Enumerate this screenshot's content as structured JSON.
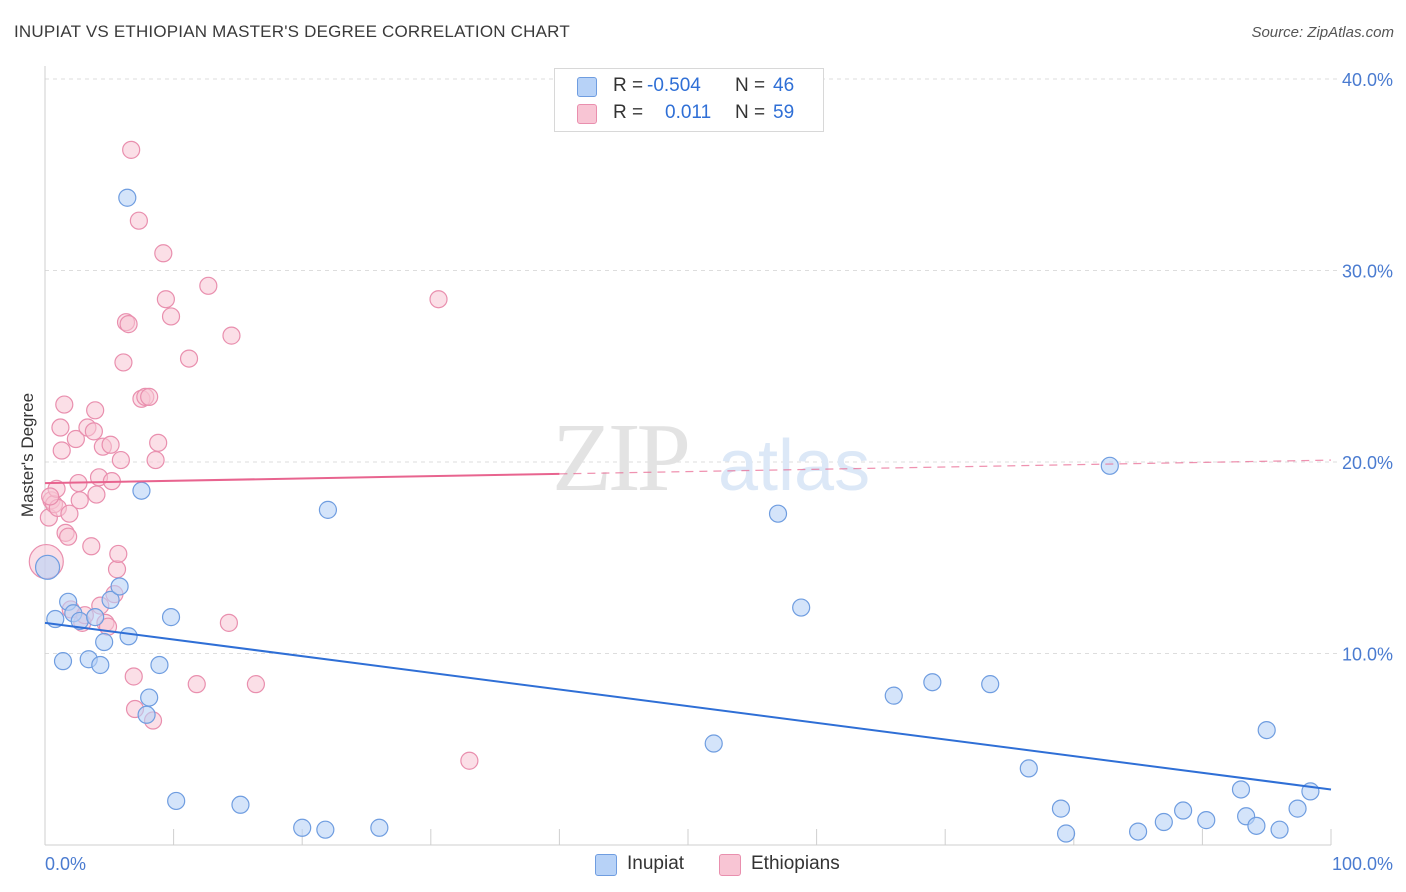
{
  "header": {
    "title": "INUPIAT VS ETHIOPIAN MASTER'S DEGREE CORRELATION CHART",
    "source": "Source: ZipAtlas.com"
  },
  "watermark": {
    "zip": "ZIP",
    "atlas": "atlas"
  },
  "legend_top": {
    "rows": [
      {
        "r_label": "R =",
        "r_value": "-0.504",
        "n_label": "N =",
        "n_value": "46"
      },
      {
        "r_label": "R =",
        "r_value": "0.011",
        "n_label": "N =",
        "n_value": "59"
      }
    ]
  },
  "legend_bottom": {
    "inupiat": "Inupiat",
    "ethiopians": "Ethiopians"
  },
  "colors": {
    "inupiat_fill": "#b7d2f7",
    "inupiat_stroke": "#6f9de0",
    "inupiat_line": "#2f6fd6",
    "ethiopian_fill": "#f8c5d4",
    "ethiopian_stroke": "#e98fae",
    "ethiopian_line": "#e8648f",
    "tick_text": "#4a7bd0",
    "grid": "#dddddd"
  },
  "chart_data": {
    "type": "scatter",
    "title": "INUPIAT VS ETHIOPIAN MASTER'S DEGREE CORRELATION CHART",
    "xlabel": "",
    "ylabel": "Master's Degree",
    "xlim": [
      0,
      100
    ],
    "ylim": [
      0,
      40
    ],
    "x_tick_labels": [
      "0.0%",
      "100.0%"
    ],
    "y_ticks": [
      10,
      20,
      30,
      40
    ],
    "y_tick_labels": [
      "10.0%",
      "20.0%",
      "30.0%",
      "40.0%"
    ],
    "series": [
      {
        "name": "Inupiat",
        "r": -0.504,
        "n": 46,
        "trend": {
          "x": [
            0,
            100
          ],
          "y": [
            11.6,
            2.9
          ],
          "dashed_from": null
        },
        "points": [
          [
            0.2,
            14.5
          ],
          [
            0.8,
            11.8
          ],
          [
            1.4,
            9.6
          ],
          [
            1.8,
            12.7
          ],
          [
            2.2,
            12.1
          ],
          [
            2.7,
            11.7
          ],
          [
            3.4,
            9.7
          ],
          [
            3.9,
            11.9
          ],
          [
            4.3,
            9.4
          ],
          [
            4.6,
            10.6
          ],
          [
            5.1,
            12.8
          ],
          [
            5.8,
            13.5
          ],
          [
            6.5,
            10.9
          ],
          [
            6.4,
            33.8
          ],
          [
            7.5,
            18.5
          ],
          [
            7.9,
            6.8
          ],
          [
            8.1,
            7.7
          ],
          [
            8.9,
            9.4
          ],
          [
            9.8,
            11.9
          ],
          [
            10.2,
            2.3
          ],
          [
            15.2,
            2.1
          ],
          [
            20.0,
            0.9
          ],
          [
            21.8,
            0.8
          ],
          [
            22.0,
            17.5
          ],
          [
            26.0,
            0.9
          ],
          [
            52.0,
            5.3
          ],
          [
            57.0,
            17.3
          ],
          [
            58.8,
            12.4
          ],
          [
            66.0,
            7.8
          ],
          [
            69.0,
            8.5
          ],
          [
            73.5,
            8.4
          ],
          [
            76.5,
            4.0
          ],
          [
            79.0,
            1.9
          ],
          [
            79.4,
            0.6
          ],
          [
            82.8,
            19.8
          ],
          [
            85.0,
            0.7
          ],
          [
            87.0,
            1.2
          ],
          [
            88.5,
            1.8
          ],
          [
            90.3,
            1.3
          ],
          [
            93.0,
            2.9
          ],
          [
            93.4,
            1.5
          ],
          [
            94.2,
            1.0
          ],
          [
            95.0,
            6.0
          ],
          [
            96.0,
            0.8
          ],
          [
            97.4,
            1.9
          ],
          [
            98.4,
            2.8
          ]
        ]
      },
      {
        "name": "Ethiopians",
        "r": 0.011,
        "n": 59,
        "trend": {
          "x": [
            0,
            100
          ],
          "y": [
            18.9,
            20.1
          ],
          "dashed_from": 40
        },
        "points": [
          [
            0.1,
            14.8
          ],
          [
            0.3,
            17.1
          ],
          [
            0.5,
            18.0
          ],
          [
            0.7,
            17.8
          ],
          [
            0.9,
            18.6
          ],
          [
            1.0,
            17.6
          ],
          [
            1.2,
            21.8
          ],
          [
            1.3,
            20.6
          ],
          [
            1.5,
            23.0
          ],
          [
            1.6,
            16.3
          ],
          [
            1.8,
            16.1
          ],
          [
            1.9,
            17.3
          ],
          [
            2.0,
            12.3
          ],
          [
            2.4,
            21.2
          ],
          [
            2.6,
            18.9
          ],
          [
            2.7,
            18.0
          ],
          [
            2.9,
            11.6
          ],
          [
            3.1,
            12.0
          ],
          [
            3.3,
            21.8
          ],
          [
            3.6,
            15.6
          ],
          [
            3.8,
            21.6
          ],
          [
            3.9,
            22.7
          ],
          [
            4.0,
            18.3
          ],
          [
            4.2,
            19.2
          ],
          [
            4.3,
            12.5
          ],
          [
            4.5,
            20.8
          ],
          [
            4.7,
            11.6
          ],
          [
            4.9,
            11.4
          ],
          [
            5.1,
            20.9
          ],
          [
            5.2,
            19.0
          ],
          [
            5.4,
            13.1
          ],
          [
            5.6,
            14.4
          ],
          [
            5.7,
            15.2
          ],
          [
            5.9,
            20.1
          ],
          [
            6.1,
            25.2
          ],
          [
            6.3,
            27.3
          ],
          [
            6.5,
            27.2
          ],
          [
            6.7,
            36.3
          ],
          [
            6.9,
            8.8
          ],
          [
            7.0,
            7.1
          ],
          [
            7.3,
            32.6
          ],
          [
            7.5,
            23.3
          ],
          [
            7.8,
            23.4
          ],
          [
            8.1,
            23.4
          ],
          [
            8.4,
            6.5
          ],
          [
            8.6,
            20.1
          ],
          [
            8.8,
            21.0
          ],
          [
            9.2,
            30.9
          ],
          [
            9.4,
            28.5
          ],
          [
            9.8,
            27.6
          ],
          [
            11.2,
            25.4
          ],
          [
            11.8,
            8.4
          ],
          [
            12.7,
            29.2
          ],
          [
            14.3,
            11.6
          ],
          [
            14.5,
            26.6
          ],
          [
            16.4,
            8.4
          ],
          [
            30.6,
            28.5
          ],
          [
            33.0,
            4.4
          ],
          [
            0.4,
            18.2
          ]
        ]
      }
    ]
  }
}
